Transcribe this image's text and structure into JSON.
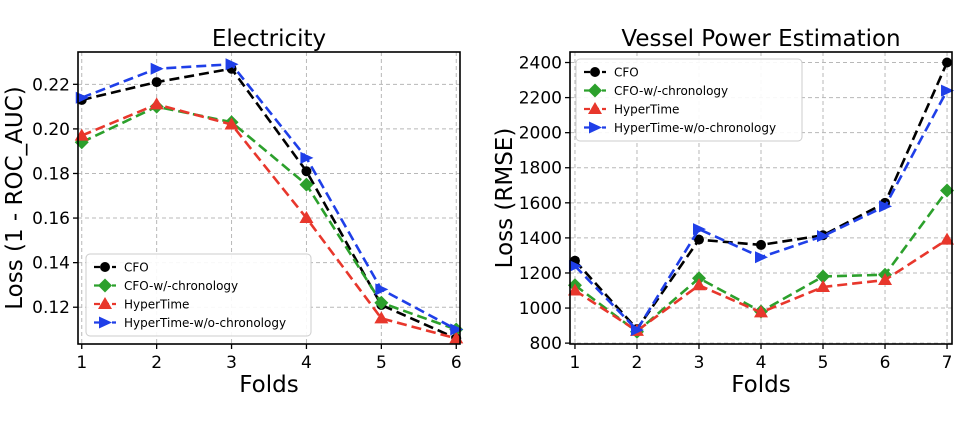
{
  "chart_data": [
    {
      "type": "line",
      "title": "Electricity",
      "xlabel": "Folds",
      "ylabel": "Loss (1 - ROC_AUC)",
      "x": [
        1,
        2,
        3,
        4,
        5,
        6
      ],
      "xlim": [
        0.95,
        6.05
      ],
      "ylim": [
        0.1035,
        0.2345
      ],
      "yticks": [
        0.12,
        0.14,
        0.16,
        0.18,
        0.2,
        0.22
      ],
      "ytick_labels": [
        "0.12",
        "0.14",
        "0.16",
        "0.18",
        "0.20",
        "0.22"
      ],
      "xtick_labels": [
        "1",
        "2",
        "3",
        "4",
        "5",
        "6"
      ],
      "grid": true,
      "legend_position": "bottom-left",
      "series": [
        {
          "name": "CFO",
          "color": "#000000",
          "marker": "circle",
          "values": [
            0.213,
            0.221,
            0.227,
            0.181,
            0.121,
            0.106
          ]
        },
        {
          "name": "CFO-w/-chronology",
          "color": "#2ca02c",
          "marker": "diamond",
          "values": [
            0.194,
            0.21,
            0.203,
            0.175,
            0.122,
            0.11
          ]
        },
        {
          "name": "HyperTime",
          "color": "#e8372c",
          "marker": "triangle-up",
          "values": [
            0.197,
            0.211,
            0.202,
            0.16,
            0.115,
            0.106
          ]
        },
        {
          "name": "HyperTime-w/o-chronology",
          "color": "#1f3fe8",
          "marker": "triangle-right",
          "values": [
            0.214,
            0.227,
            0.229,
            0.187,
            0.128,
            0.11
          ]
        }
      ]
    },
    {
      "type": "line",
      "title": "Vessel Power Estimation",
      "xlabel": "Folds",
      "ylabel": "Loss (RMSE)",
      "x": [
        1,
        2,
        3,
        4,
        5,
        6,
        7
      ],
      "xlim": [
        0.92,
        7.08
      ],
      "ylim": [
        795,
        2460
      ],
      "yticks": [
        800,
        1000,
        1200,
        1400,
        1600,
        1800,
        2000,
        2200,
        2400
      ],
      "ytick_labels": [
        "800",
        "1000",
        "1200",
        "1400",
        "1600",
        "1800",
        "2000",
        "2200",
        "2400"
      ],
      "xtick_labels": [
        "1",
        "2",
        "3",
        "4",
        "5",
        "6",
        "7"
      ],
      "grid": true,
      "legend_position": "top-left",
      "series": [
        {
          "name": "CFO",
          "color": "#000000",
          "marker": "circle",
          "values": [
            1270,
            880,
            1390,
            1360,
            1415,
            1600,
            2400
          ]
        },
        {
          "name": "CFO-w/-chronology",
          "color": "#2ca02c",
          "marker": "diamond",
          "values": [
            1130,
            865,
            1170,
            980,
            1180,
            1190,
            1670
          ]
        },
        {
          "name": "HyperTime",
          "color": "#e8372c",
          "marker": "triangle-up",
          "values": [
            1100,
            870,
            1130,
            975,
            1120,
            1160,
            1390
          ]
        },
        {
          "name": "HyperTime-w/o-chronology",
          "color": "#1f3fe8",
          "marker": "triangle-right",
          "values": [
            1240,
            875,
            1450,
            1290,
            1410,
            1580,
            2240
          ]
        }
      ]
    }
  ]
}
